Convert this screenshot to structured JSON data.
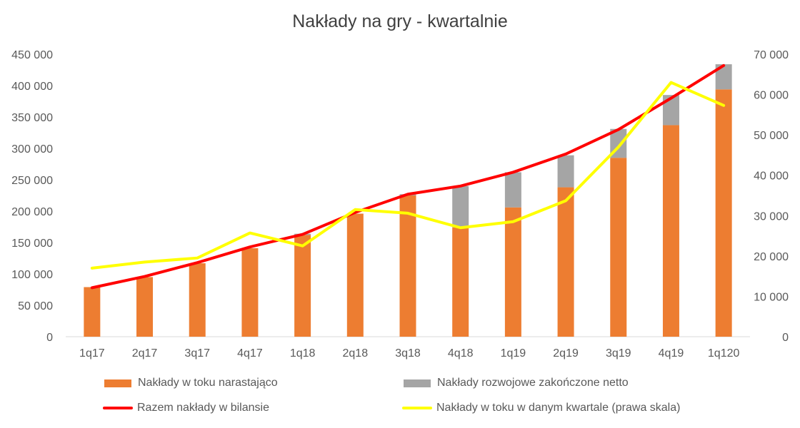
{
  "chart_data": {
    "type": "bar",
    "title": "Nakłady na gry - kwartalnie",
    "categories": [
      "1q17",
      "2q17",
      "3q17",
      "4q17",
      "1q18",
      "2q18",
      "3q18",
      "4q18",
      "1q19",
      "2q19",
      "3q19",
      "4q19",
      "1q120"
    ],
    "left_axis": {
      "ylim": [
        0,
        450000
      ],
      "ticks": [
        "0",
        "50 000",
        "100 000",
        "150 000",
        "200 000",
        "250 000",
        "300 000",
        "350 000",
        "400 000",
        "450 000"
      ]
    },
    "right_axis": {
      "ylim": [
        0,
        70000
      ],
      "ticks": [
        "0",
        "10 000",
        "20 000",
        "30 000",
        "40 000",
        "50 000",
        "60 000",
        "70 000"
      ]
    },
    "grid": false,
    "legend_position": "bottom",
    "series": [
      {
        "name": "Nakłady w toku narastająco",
        "kind": "stacked-bar",
        "axis": "left",
        "color": "#ED7D31",
        "values": [
          79000,
          95000,
          117000,
          141000,
          162000,
          196000,
          225000,
          174000,
          206000,
          238000,
          285000,
          337000,
          394000
        ]
      },
      {
        "name": "Nakłady rozwojowe zakończone netto",
        "kind": "stacked-bar",
        "axis": "left",
        "color": "#A5A5A5",
        "values": [
          0,
          0,
          0,
          0,
          2000,
          0,
          2000,
          66000,
          56000,
          51000,
          46000,
          48000,
          40000
        ]
      },
      {
        "name": "Razem nakłady w bilansie",
        "kind": "line",
        "axis": "left",
        "color": "#FF0000",
        "values": [
          78000,
          96000,
          118000,
          143000,
          163000,
          198000,
          227000,
          240000,
          262000,
          291000,
          330000,
          380000,
          432000
        ]
      },
      {
        "name": "Nakłady w toku w danym kwartale (prawa skala)",
        "kind": "line",
        "axis": "right",
        "color": "#FFFF00",
        "values": [
          17000,
          18500,
          19500,
          25700,
          22500,
          31500,
          30600,
          27000,
          28500,
          33700,
          47000,
          63000,
          57300
        ]
      }
    ]
  }
}
